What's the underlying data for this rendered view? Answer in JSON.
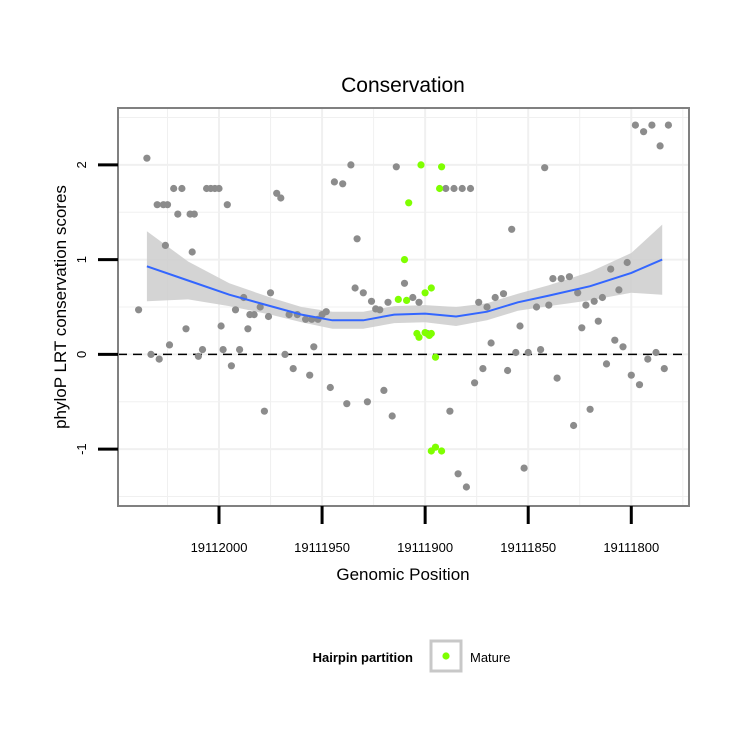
{
  "chart_data": {
    "type": "scatter",
    "title": "Conservation",
    "xlabel": "Genomic Position",
    "ylabel": "phyloP LRT conservation scores",
    "x_reversed": true,
    "xlim": [
      19112049,
      19111772
    ],
    "ylim": [
      -1.6,
      2.6
    ],
    "x_ticks": [
      19112000,
      19111950,
      19111900,
      19111850,
      19111800
    ],
    "x_tick_labels": [
      "19112000",
      "19111950",
      "19111900",
      "19111850",
      "19111800"
    ],
    "y_ticks": [
      -1,
      0,
      1,
      2
    ],
    "y_tick_labels": [
      "-1",
      "0",
      "1",
      "2"
    ],
    "grid": true,
    "reference_line": {
      "y": 0,
      "style": "dashed"
    },
    "legend": {
      "title": "Hairpin partition",
      "position": "bottom",
      "entries": [
        {
          "label": "Mature",
          "color": "#7fff00"
        }
      ]
    },
    "colors": {
      "points_default": "#8c8c8c",
      "mature": "#7fff00",
      "smooth_line": "#3366ff",
      "ribbon": "#cccccc",
      "panel_border": "#808080"
    },
    "smooth": {
      "x": [
        19112035,
        19112015,
        19111995,
        19111975,
        19111960,
        19111945,
        19111930,
        19111915,
        19111900,
        19111885,
        19111870,
        19111855,
        19111840,
        19111820,
        19111800,
        19111785
      ],
      "y": [
        0.93,
        0.78,
        0.63,
        0.51,
        0.42,
        0.36,
        0.36,
        0.42,
        0.43,
        0.4,
        0.45,
        0.55,
        0.62,
        0.72,
        0.86,
        1.0
      ],
      "upper": [
        1.3,
        0.98,
        0.75,
        0.6,
        0.5,
        0.45,
        0.45,
        0.51,
        0.52,
        0.5,
        0.54,
        0.64,
        0.73,
        0.87,
        1.07,
        1.37
      ],
      "lower": [
        0.56,
        0.58,
        0.51,
        0.42,
        0.34,
        0.27,
        0.27,
        0.33,
        0.34,
        0.3,
        0.36,
        0.46,
        0.51,
        0.57,
        0.65,
        0.63
      ]
    },
    "series": [
      {
        "name": "Mature",
        "x": [
          19111908,
          19111902,
          19111910,
          19111913,
          19111909,
          19111900,
          19111897,
          19111900,
          19111904,
          19111903,
          19111898,
          19111897,
          19111895,
          19111892,
          19111897,
          19111895,
          19111892,
          19111893
        ],
        "y": [
          1.6,
          2.0,
          1.0,
          0.58,
          0.57,
          0.65,
          0.7,
          0.23,
          0.22,
          0.18,
          0.2,
          0.22,
          -0.03,
          -1.02,
          -1.02,
          -0.98,
          1.98,
          1.75
        ]
      },
      {
        "name": "",
        "x": [
          19112039,
          19112035,
          19112030,
          19112027,
          19112025,
          19112022,
          19112020,
          19112018,
          19112014,
          19112012,
          19112006,
          19112004,
          19112002,
          19112000,
          19111996,
          19111992,
          19111990,
          19111988,
          19111985,
          19111983,
          19111980,
          19111976,
          19111972,
          19111970,
          19111966,
          19111962,
          19111958,
          19111955,
          19111952,
          19111950,
          19111948,
          19111944,
          19111940,
          19111936,
          19111933,
          19111930,
          19111926,
          19111922,
          19111918,
          19111914,
          19111910,
          19111906,
          19111903,
          19111899,
          19111890,
          19111886,
          19111882,
          19111878,
          19111874,
          19111870,
          19111866,
          19111862,
          19111858,
          19111854,
          19111850,
          19111846,
          19111842,
          19111838,
          19111834,
          19111830,
          19111826,
          19111822,
          19111818,
          19111814,
          19111810,
          19111806,
          19111802,
          19111798,
          19111794,
          19111790,
          19111786,
          19111782,
          19112033,
          19112029,
          19112024,
          19112016,
          19112010,
          19112008,
          19111998,
          19111994,
          19111986,
          19111978,
          19111968,
          19111964,
          19111956,
          19111946,
          19111938,
          19111928,
          19111920,
          19111916,
          19111888,
          19111884,
          19111876,
          19111868,
          19111860,
          19111852,
          19111844,
          19111836,
          19111828,
          19111820,
          19111812,
          19111804,
          19111800,
          19111796,
          19111788,
          19111784,
          19112026,
          19112013,
          19111999,
          19111975,
          19111954,
          19111934,
          19111924,
          19111880,
          19111872,
          19111856,
          19111840,
          19111824,
          19111816,
          19111808,
          19111792
        ],
        "y": [
          0.47,
          2.07,
          1.58,
          1.58,
          1.58,
          1.75,
          1.48,
          1.75,
          1.48,
          1.48,
          1.75,
          1.75,
          1.75,
          1.75,
          1.58,
          0.47,
          0.05,
          0.6,
          0.42,
          0.42,
          0.5,
          0.4,
          1.7,
          1.65,
          0.42,
          0.42,
          0.37,
          0.37,
          0.37,
          0.42,
          0.45,
          1.82,
          1.8,
          2.0,
          1.22,
          0.65,
          0.56,
          0.47,
          0.55,
          1.98,
          0.75,
          0.6,
          0.55,
          0.22,
          1.75,
          1.75,
          1.75,
          1.75,
          0.55,
          0.5,
          0.6,
          0.64,
          1.32,
          0.3,
          0.02,
          0.5,
          1.97,
          0.8,
          0.8,
          0.82,
          0.65,
          0.52,
          0.56,
          0.6,
          0.9,
          0.68,
          0.97,
          2.42,
          2.35,
          2.42,
          2.2,
          2.42,
          0.0,
          -0.05,
          0.1,
          0.27,
          -0.02,
          0.05,
          0.05,
          -0.12,
          0.27,
          -0.6,
          0.0,
          -0.15,
          -0.22,
          -0.35,
          -0.52,
          -0.5,
          -0.38,
          -0.65,
          -0.6,
          -1.26,
          -0.3,
          0.12,
          -0.17,
          -1.2,
          0.05,
          -0.25,
          -0.75,
          -0.58,
          -0.1,
          0.08,
          -0.22,
          -0.32,
          0.02,
          -0.15,
          1.15,
          1.08,
          0.3,
          0.65,
          0.08,
          0.7,
          0.48,
          -1.4,
          -0.15,
          0.02,
          0.52,
          0.28,
          0.35,
          0.15,
          -0.05
        ]
      }
    ]
  }
}
